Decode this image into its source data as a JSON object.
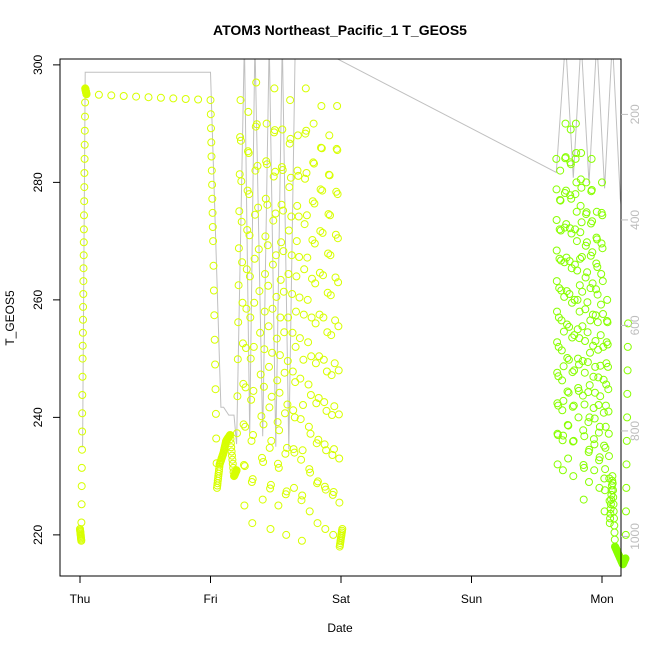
{
  "chart_data": {
    "type": "scatter",
    "title": "ATOM3 Northeast_Pacific_1 T_GEOS5",
    "xlabel": "Date",
    "ylabel": "T_GEOS5",
    "x_ticks": [
      "Thu",
      "Fri",
      "Sat",
      "Sun",
      "Mon"
    ],
    "x_range_days": [
      -0.1,
      4.15
    ],
    "ylim": [
      213,
      301
    ],
    "y_ticks": [
      220,
      240,
      260,
      280,
      300
    ],
    "y2_ticks": [
      200,
      400,
      600,
      800,
      1000
    ],
    "y2lim": [
      95,
      1075
    ],
    "y2_reversed": true,
    "grid": false,
    "colors": {
      "series_early": "#d7ff00",
      "series_late": "#88ff00",
      "pressure_line": "#c0c0c0"
    },
    "series": [
      {
        "x": [
          0.0,
          0.01,
          0.02,
          0.03,
          0.04,
          0.05,
          1.0,
          1.02,
          1.05,
          1.07,
          1.1,
          1.12,
          1.15,
          1.18,
          1.2,
          1.23,
          1.26,
          1.29,
          1.32,
          1.35,
          1.4,
          1.43,
          1.46,
          1.49,
          1.52,
          1.55,
          1.58,
          1.61,
          1.64,
          1.67,
          1.7,
          1.73,
          1.76,
          1.79,
          1.82,
          1.85,
          1.88,
          1.91,
          1.94,
          1.97,
          1.99,
          2.01
        ],
        "y": [
          221,
          219,
          250,
          272,
          296,
          295,
          294,
          270,
          228,
          232,
          234,
          236,
          237,
          230,
          231,
          294,
          225,
          292,
          222,
          297,
          226,
          290,
          221,
          296,
          225,
          289,
          220,
          294,
          228,
          288,
          219,
          296,
          224,
          290,
          222,
          293,
          221,
          288,
          220,
          293,
          218,
          221
        ]
      },
      {
        "x": [
          3.65,
          3.66,
          3.68,
          3.7,
          3.72,
          3.74,
          3.76,
          3.78,
          3.8,
          3.82,
          3.84,
          3.86,
          3.88,
          3.9,
          3.92,
          3.94,
          3.96,
          3.98,
          4.0,
          4.02,
          4.04,
          4.06,
          4.08,
          4.1,
          4.12,
          4.14,
          4.16,
          4.18,
          4.2
        ],
        "y": [
          284,
          232,
          282,
          231,
          290,
          233,
          289,
          230,
          290,
          240,
          285,
          226,
          280,
          229,
          284,
          231,
          275,
          228,
          280,
          224,
          260,
          222,
          230,
          218,
          217,
          216,
          215,
          216,
          256
        ]
      }
    ],
    "pressure_line": {
      "x": [
        0.0,
        0.02,
        0.04,
        1.0,
        1.08,
        1.1,
        1.14,
        1.18,
        1.2,
        1.26,
        1.3,
        1.34,
        1.4,
        1.45,
        1.5,
        1.55,
        1.6,
        1.65,
        1.7,
        3.65,
        3.72,
        3.78,
        3.84,
        3.9,
        3.96,
        4.02,
        4.08,
        4.14,
        4.2
      ],
      "y": [
        830,
        830,
        120,
        120,
        755,
        755,
        770,
        770,
        825,
        60,
        805,
        60,
        810,
        60,
        830,
        60,
        835,
        60,
        60,
        310,
        60,
        320,
        60,
        330,
        60,
        340,
        60,
        360,
        480
      ]
    }
  }
}
